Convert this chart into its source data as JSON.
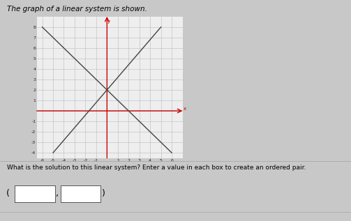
{
  "title": "The graph of a linear system is shown.",
  "question": "What is the solution to this linear system? Enter a value in each box to create an ordered pair.",
  "xlim": [
    -6.5,
    7
  ],
  "ylim": [
    -4.5,
    9
  ],
  "xticks": [
    -6,
    -5,
    -4,
    -3,
    -2,
    -1,
    1,
    2,
    3,
    4,
    5,
    6
  ],
  "yticks": [
    -4,
    -3,
    -2,
    -1,
    1,
    2,
    3,
    4,
    5,
    6,
    7,
    8
  ],
  "grid_xticks": [
    -6,
    -5,
    -4,
    -3,
    -2,
    -1,
    0,
    1,
    2,
    3,
    4,
    5,
    6
  ],
  "grid_yticks": [
    -4,
    -3,
    -2,
    -1,
    0,
    1,
    2,
    3,
    4,
    5,
    6,
    7,
    8
  ],
  "line1_x": [
    -6,
    6
  ],
  "line1_y": [
    8,
    -4
  ],
  "line2_x": [
    -5,
    5
  ],
  "line2_y": [
    -4,
    8
  ],
  "line_color": "#444444",
  "line_lw": 1.0,
  "axis_color": "#cc0000",
  "axis_lw": 1.0,
  "grid_color": "#bbbbbb",
  "grid_lw": 0.4,
  "plot_bg": "#eeeeee",
  "fig_bg": "#c8c8c8",
  "tick_fontsize": 4.5,
  "title_fontsize": 7.5,
  "question_fontsize": 6.5
}
